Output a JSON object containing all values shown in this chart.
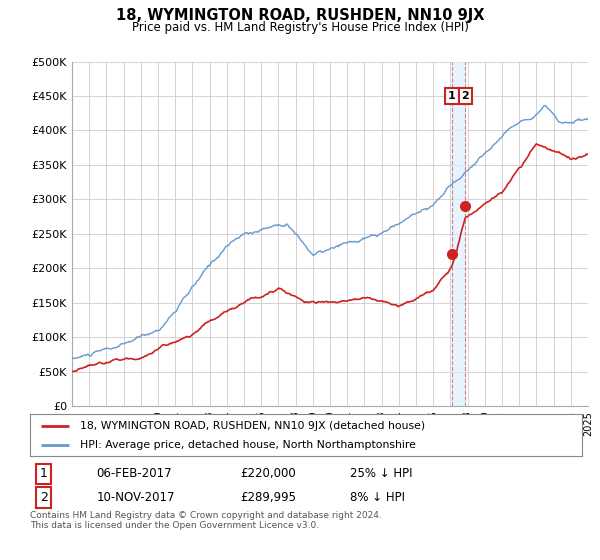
{
  "title": "18, WYMINGTON ROAD, RUSHDEN, NN10 9JX",
  "subtitle": "Price paid vs. HM Land Registry's House Price Index (HPI)",
  "ylabel_ticks": [
    "£0",
    "£50K",
    "£100K",
    "£150K",
    "£200K",
    "£250K",
    "£300K",
    "£350K",
    "£400K",
    "£450K",
    "£500K"
  ],
  "ytick_vals": [
    0,
    50000,
    100000,
    150000,
    200000,
    250000,
    300000,
    350000,
    400000,
    450000,
    500000
  ],
  "xlim_years": [
    1995,
    2025
  ],
  "ylim": [
    0,
    500000
  ],
  "hpi_color": "#6699cc",
  "property_color": "#cc2222",
  "point1_date_x": 2017.09,
  "point1_y": 220000,
  "point2_date_x": 2017.86,
  "point2_y": 289995,
  "legend_label_red": "18, WYMINGTON ROAD, RUSHDEN, NN10 9JX (detached house)",
  "legend_label_blue": "HPI: Average price, detached house, North Northamptonshire",
  "table_row1": [
    "1",
    "06-FEB-2017",
    "£220,000",
    "25% ↓ HPI"
  ],
  "table_row2": [
    "2",
    "10-NOV-2017",
    "£289,995",
    "8% ↓ HPI"
  ],
  "footnote": "Contains HM Land Registry data © Crown copyright and database right 2024.\nThis data is licensed under the Open Government Licence v3.0.",
  "background_color": "#ffffff",
  "grid_color": "#cccccc",
  "shade_color": "#ddeeff"
}
